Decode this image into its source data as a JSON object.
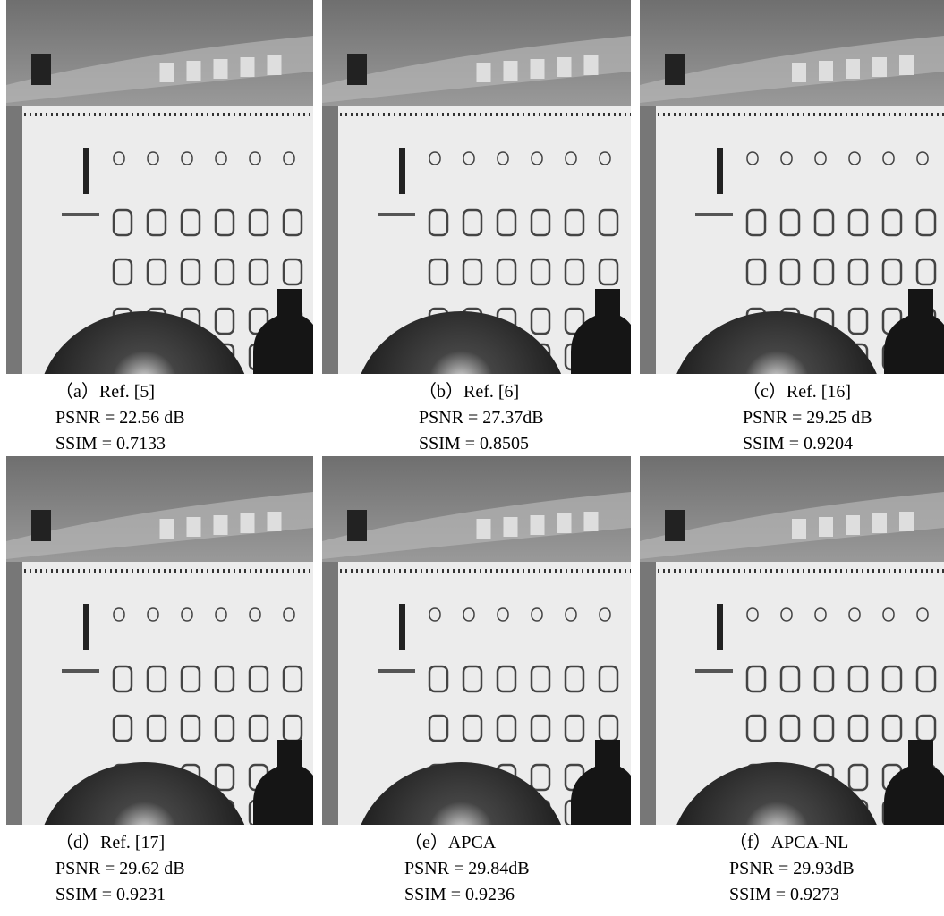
{
  "panels": [
    {
      "label": "（a）Ref. [5]",
      "psnr": "PSNR = 22.56 dB",
      "ssim": "SSIM = 0.7133"
    },
    {
      "label": "（b）Ref. [6]",
      "psnr": "PSNR = 27.37dB",
      "ssim": "SSIM = 0.8505"
    },
    {
      "label": "（c）Ref. [16]",
      "psnr": "PSNR = 29.25 dB",
      "ssim": "SSIM = 0.9204"
    },
    {
      "label": "（d）Ref. [17]",
      "psnr": "PSNR = 29.62 dB",
      "ssim": "SSIM = 0.9231"
    },
    {
      "label": "（e）APCA",
      "psnr": "PSNR = 29.84dB",
      "ssim": "SSIM = 0.9236"
    },
    {
      "label": "（f）APCA-NL",
      "psnr": "PSNR = 29.93dB",
      "ssim": "SSIM = 0.9273"
    }
  ]
}
